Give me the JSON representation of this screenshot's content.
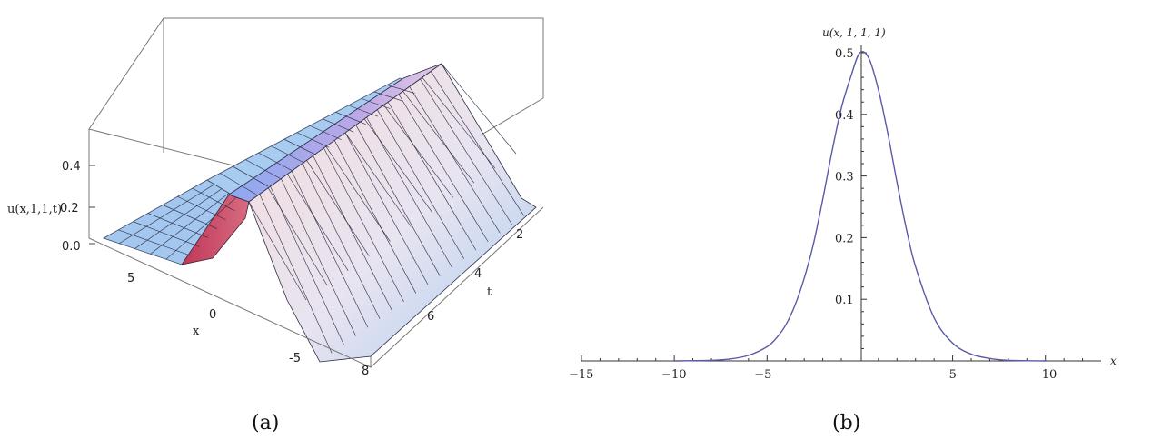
{
  "chart_data": [
    {
      "type": "surface",
      "panel": "(a)",
      "zlabel": "u(x,1,1,t)",
      "xlabel": "x",
      "ylabel": "t",
      "x_ticks": [
        "5",
        "0",
        "-5"
      ],
      "t_ticks": [
        "2",
        "4",
        "6",
        "8"
      ],
      "z_ticks": [
        "0.0",
        "0.2",
        "0.4"
      ],
      "xlim": [
        -8,
        8
      ],
      "tlim": [
        0,
        8
      ],
      "zlim": [
        0,
        0.5
      ],
      "colors": {
        "low": "#9ec5ee",
        "mid": "#f2d6d6",
        "peak": "#c04a66",
        "ridge": "#9a90d8"
      }
    },
    {
      "type": "line",
      "panel": "(b)",
      "title": "u(x, 1, 1, 1)",
      "xlabel": "x",
      "xlim": [
        -15,
        13
      ],
      "ylim": [
        0,
        0.52
      ],
      "x_ticks": [
        "−15",
        "−10",
        "−5",
        "5",
        "10"
      ],
      "y_ticks": [
        "0.1",
        "0.2",
        "0.3",
        "0.4",
        "0.5"
      ],
      "series": [
        {
          "color": "#5a5aa8",
          "x": [
            -10,
            -8,
            -7,
            -6,
            -5,
            -4.5,
            -4,
            -3.5,
            -3,
            -2.5,
            -2,
            -1.5,
            -1,
            -0.5,
            0,
            0.5,
            1,
            1.5,
            2,
            2.5,
            3,
            4,
            5,
            6,
            7,
            8,
            10
          ],
          "y": [
            0.0,
            0.001,
            0.003,
            0.009,
            0.023,
            0.037,
            0.058,
            0.09,
            0.134,
            0.19,
            0.262,
            0.34,
            0.41,
            0.46,
            0.5,
            0.49,
            0.44,
            0.37,
            0.29,
            0.215,
            0.153,
            0.07,
            0.029,
            0.011,
            0.004,
            0.001,
            0.0
          ]
        }
      ]
    }
  ],
  "captions": [
    "(a)",
    "(b)"
  ]
}
